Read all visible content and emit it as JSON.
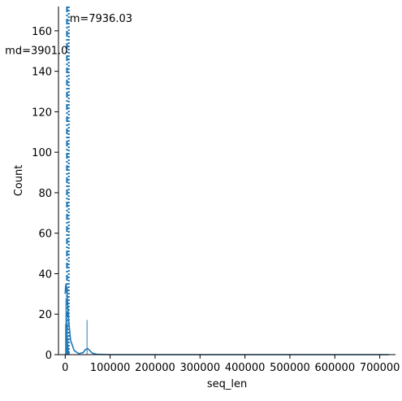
{
  "chart_data": {
    "type": "histogram",
    "xlabel": "seq_len",
    "ylabel": "Count",
    "xlim": [
      -15000,
      735000
    ],
    "ylim": [
      0,
      172
    ],
    "x_ticks": [
      0,
      100000,
      200000,
      300000,
      400000,
      500000,
      600000,
      700000
    ],
    "x_tick_labels": [
      "0",
      "100000",
      "200000",
      "300000",
      "400000",
      "500000",
      "600000",
      "700000"
    ],
    "y_ticks": [
      0,
      20,
      40,
      60,
      80,
      100,
      120,
      140,
      160
    ],
    "y_tick_labels": [
      "0",
      "20",
      "40",
      "60",
      "80",
      "100",
      "120",
      "140",
      "160"
    ],
    "grid": false,
    "series": [
      {
        "kind": "bars",
        "color": "#1f77b4",
        "bins": [
          {
            "x0": 0,
            "x1": 1000,
            "count": 15
          },
          {
            "x0": 1000,
            "x1": 2000,
            "count": 28
          },
          {
            "x0": 2000,
            "x1": 3000,
            "count": 25
          },
          {
            "x0": 3000,
            "x1": 4000,
            "count": 20
          },
          {
            "x0": 4000,
            "x1": 5000,
            "count": 14
          },
          {
            "x0": 5000,
            "x1": 6000,
            "count": 8
          },
          {
            "x0": 6000,
            "x1": 7000,
            "count": 4
          },
          {
            "x0": 7000,
            "x1": 8000,
            "count": 2
          },
          {
            "x0": 8000,
            "x1": 9000,
            "count": 1
          },
          {
            "x0": 48000,
            "x1": 49500,
            "count": 17
          }
        ]
      },
      {
        "kind": "kde",
        "color": "#1f77b4",
        "x": [
          0,
          1000,
          2000,
          3000,
          5000,
          8000,
          12000,
          20000,
          30000,
          40000,
          45000,
          50000,
          55000,
          60000,
          70000,
          100000,
          200000,
          400000,
          600000,
          720000
        ],
        "y": [
          30,
          34,
          35,
          33,
          27,
          16,
          7,
          2,
          0.5,
          1,
          2.5,
          3,
          2,
          0.8,
          0.2,
          0,
          0,
          0,
          0,
          0
        ]
      }
    ],
    "reference_lines": [
      {
        "kind": "median",
        "value": 3901.0,
        "label": "md=3901.0",
        "color": "#1f77b4",
        "style": "dashdot",
        "label_y": 150
      },
      {
        "kind": "mean",
        "value": 7936.03,
        "label": "m=7936.03",
        "color": "#1f77b4",
        "style": "dotted",
        "label_y": 166
      }
    ]
  }
}
